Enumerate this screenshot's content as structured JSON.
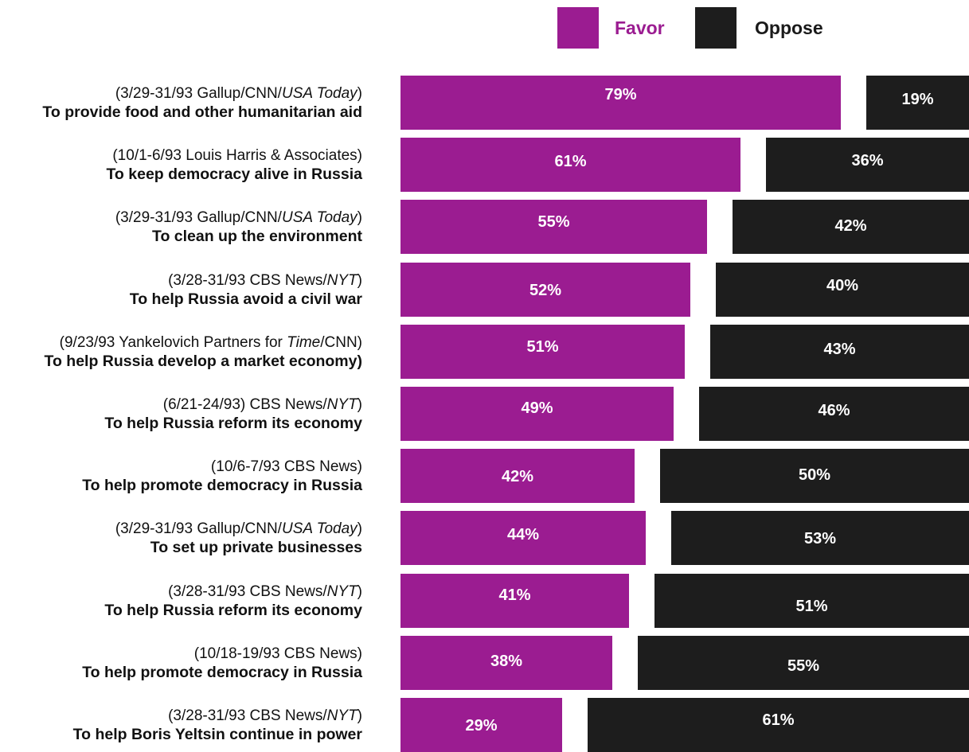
{
  "colors": {
    "favor": "#9b1c91",
    "oppose": "#1d1d1d"
  },
  "chart_data": {
    "type": "bar",
    "orientation": "horizontal",
    "legend": {
      "placement": "top-right",
      "entries": [
        "Favor",
        "Oppose"
      ]
    },
    "series": [
      {
        "name": "Favor",
        "values": [
          79,
          61,
          55,
          52,
          51,
          49,
          42,
          44,
          41,
          38,
          29
        ]
      },
      {
        "name": "Oppose",
        "values": [
          19,
          36,
          42,
          40,
          43,
          46,
          50,
          53,
          51,
          55,
          61
        ]
      }
    ],
    "categories": [
      {
        "source": [
          {
            "t": "(3/29-31/93 Gallup/CNN/"
          },
          {
            "t": "USA Today",
            "i": true
          },
          {
            "t": ")"
          }
        ],
        "question": "To provide food and other humanitarian aid"
      },
      {
        "source": [
          {
            "t": "(10/1-6/93 Louis Harris & Associates)"
          }
        ],
        "question": "To keep democracy alive in Russia"
      },
      {
        "source": [
          {
            "t": "(3/29-31/93 Gallup/CNN/"
          },
          {
            "t": "USA Today",
            "i": true
          },
          {
            "t": ")"
          }
        ],
        "question": "To clean up the environment"
      },
      {
        "source": [
          {
            "t": "(3/28-31/93 CBS News/"
          },
          {
            "t": "NYT",
            "i": true
          },
          {
            "t": ")"
          }
        ],
        "question": "To help Russia avoid a civil war"
      },
      {
        "source": [
          {
            "t": "(9/23/93 Yankelovich Partners for "
          },
          {
            "t": "Time",
            "i": true
          },
          {
            "t": "/CNN)"
          }
        ],
        "question": "To help Russia develop a market economy)"
      },
      {
        "source": [
          {
            "t": "(6/21-24/93) CBS News/"
          },
          {
            "t": "NYT",
            "i": true
          },
          {
            "t": ")"
          }
        ],
        "question": "To help Russia reform its economy"
      },
      {
        "source": [
          {
            "t": "(10/6-7/93 CBS News)"
          }
        ],
        "question": "To help promote democracy in Russia"
      },
      {
        "source": [
          {
            "t": "(3/29-31/93 Gallup/CNN/"
          },
          {
            "t": "USA Today",
            "i": true
          },
          {
            "t": ")"
          }
        ],
        "question": "To set up private businesses"
      },
      {
        "source": [
          {
            "t": "(3/28-31/93 CBS News/"
          },
          {
            "t": "NYT",
            "i": true
          },
          {
            "t": ")"
          }
        ],
        "question": "To help Russia reform its economy"
      },
      {
        "source": [
          {
            "t": "(10/18-19/93 CBS News)"
          }
        ],
        "question": "To help promote democracy in Russia"
      },
      {
        "source": [
          {
            "t": "(3/28-31/93 CBS News/"
          },
          {
            "t": "NYT",
            "i": true
          },
          {
            "t": ")"
          }
        ],
        "question": "To help Boris Yeltsin continue in power"
      }
    ],
    "value_labels": {
      "favor": [
        "79%",
        "61%",
        "55%",
        "52%",
        "51%",
        "49%",
        "42%",
        "44%",
        "41%",
        "38%",
        "29%"
      ],
      "oppose": [
        "19%",
        "36%",
        "42%",
        "40%",
        "43%",
        "46%",
        "50%",
        "53%",
        "51%",
        "55%",
        "61%"
      ]
    }
  }
}
